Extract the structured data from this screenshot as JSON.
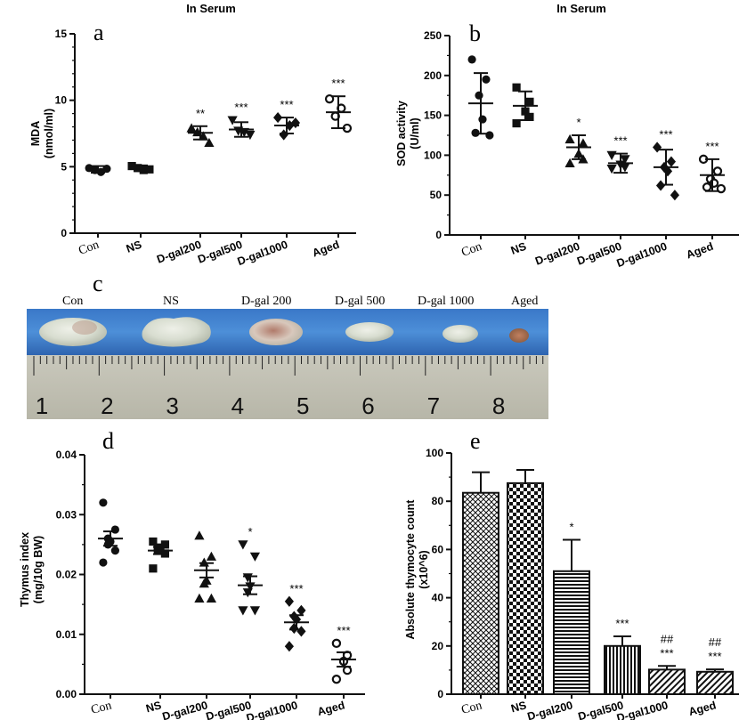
{
  "chart_data": [
    {
      "id": "a",
      "panel_label": "a",
      "type": "scatter",
      "title": "In Serum",
      "ylabel_line1": "MDA",
      "ylabel_line2": "(nmol/ml)",
      "ylim": [
        0,
        15
      ],
      "yticks": [
        "0",
        "5",
        "10",
        "15"
      ],
      "categories": [
        "Con",
        "NS",
        "D-gal200",
        "D-gal500",
        "D-gal1000",
        "Aged"
      ],
      "markers": [
        "circle",
        "square",
        "triangle",
        "triangle-down",
        "diamond",
        "circle-open"
      ],
      "points": [
        [
          4.9,
          4.6,
          4.75,
          4.85
        ],
        [
          5.05,
          4.75,
          4.9,
          4.8
        ],
        [
          7.9,
          7.3,
          7.6,
          6.8
        ],
        [
          8.5,
          7.6,
          7.7,
          7.4
        ],
        [
          8.7,
          8.1,
          7.4,
          8.3
        ],
        [
          10.1,
          9.4,
          8.8,
          7.9
        ]
      ],
      "mean": [
        4.8,
        4.9,
        7.55,
        7.8,
        8.1,
        9.1
      ],
      "sd": [
        0.25,
        0.2,
        0.5,
        0.55,
        0.6,
        1.2
      ],
      "significance": [
        "",
        "",
        "**",
        "***",
        "***",
        "***"
      ]
    },
    {
      "id": "b",
      "panel_label": "b",
      "type": "scatter",
      "title": "In Serum",
      "ylabel_line1": "SOD activity",
      "ylabel_line2": "(U/ml)",
      "ylim": [
        0,
        250
      ],
      "yticks": [
        "0",
        "50",
        "100",
        "150",
        "200",
        "250"
      ],
      "categories": [
        "Con",
        "NS",
        "D-gal200",
        "D-gal500",
        "D-gal1000",
        "Aged"
      ],
      "markers": [
        "circle",
        "square",
        "triangle",
        "triangle-down",
        "diamond",
        "circle-open"
      ],
      "points": [
        [
          220,
          195,
          175,
          145,
          128,
          125
        ],
        [
          185,
          167,
          155,
          148,
          140
        ],
        [
          120,
          115,
          102,
          95,
          90
        ],
        [
          100,
          95,
          88,
          85,
          83
        ],
        [
          110,
          92,
          85,
          80,
          62,
          50
        ],
        [
          95,
          80,
          70,
          65,
          60,
          58
        ]
      ],
      "mean": [
        165,
        162,
        110,
        90,
        85,
        75
      ],
      "sd": [
        38,
        18,
        15,
        12,
        22,
        20
      ],
      "significance": [
        "",
        "",
        "*",
        "***",
        "***",
        "***"
      ]
    },
    {
      "id": "d",
      "panel_label": "d",
      "type": "scatter",
      "title": "",
      "ylabel_line1": "Thymus index",
      "ylabel_line2": "(mg/10g BW)",
      "ylim": [
        0,
        0.04
      ],
      "yticks": [
        "0.00",
        "0.01",
        "0.02",
        "0.03",
        "0.04"
      ],
      "categories": [
        "Con",
        "NS",
        "D-gal200",
        "D-gal500",
        "D-gal1000",
        "Aged"
      ],
      "markers": [
        "circle",
        "square",
        "triangle",
        "triangle-down",
        "diamond",
        "circle-open"
      ],
      "points": [
        [
          0.032,
          0.0275,
          0.026,
          0.0255,
          0.025,
          0.024,
          0.022
        ],
        [
          0.0255,
          0.025,
          0.0245,
          0.024,
          0.024,
          0.0235,
          0.021
        ],
        [
          0.0265,
          0.023,
          0.022,
          0.019,
          0.0185,
          0.016,
          0.016
        ],
        [
          0.025,
          0.023,
          0.0195,
          0.018,
          0.017,
          0.014,
          0.014
        ],
        [
          0.0155,
          0.014,
          0.013,
          0.0125,
          0.011,
          0.0105,
          0.008
        ],
        [
          0.0085,
          0.0065,
          0.0055,
          0.004,
          0.0025
        ]
      ],
      "mean": [
        0.026,
        0.024,
        0.0207,
        0.0182,
        0.012,
        0.0058
      ],
      "sem": [
        0.0012,
        0.0006,
        0.0012,
        0.0015,
        0.0012,
        0.0012
      ],
      "significance": [
        "",
        "",
        "",
        "*",
        "***",
        "***"
      ]
    },
    {
      "id": "e",
      "panel_label": "e",
      "type": "bar",
      "title": "",
      "ylabel_line1": "Absolute thymocyte count",
      "ylabel_line2": "(x10^6)",
      "ylim": [
        0,
        100
      ],
      "yticks": [
        "0",
        "20",
        "40",
        "60",
        "80",
        "100"
      ],
      "categories": [
        "Con",
        "NS",
        "D-gal200",
        "D-gal500",
        "D-gal1000",
        "Aged"
      ],
      "patterns": [
        "cross",
        "checker",
        "horizontal",
        "vertical",
        "diagonal",
        "diagonal"
      ],
      "values": [
        83.5,
        87.5,
        51,
        20,
        10.2,
        9.3
      ],
      "errors": [
        8.5,
        5.5,
        13,
        4,
        1.5,
        1
      ],
      "significance": [
        "",
        "",
        "*",
        "***",
        "***",
        "***"
      ],
      "significance2": [
        "",
        "",
        "",
        "",
        "##",
        "##"
      ]
    }
  ],
  "photo": {
    "panel_label": "c",
    "labels": [
      "Con",
      "NS",
      "D-gal 200",
      "D-gal 500",
      "D-gal 1000",
      "Aged"
    ],
    "ruler_numbers": [
      "1",
      "2",
      "3",
      "4",
      "5",
      "6",
      "7",
      "8"
    ]
  }
}
